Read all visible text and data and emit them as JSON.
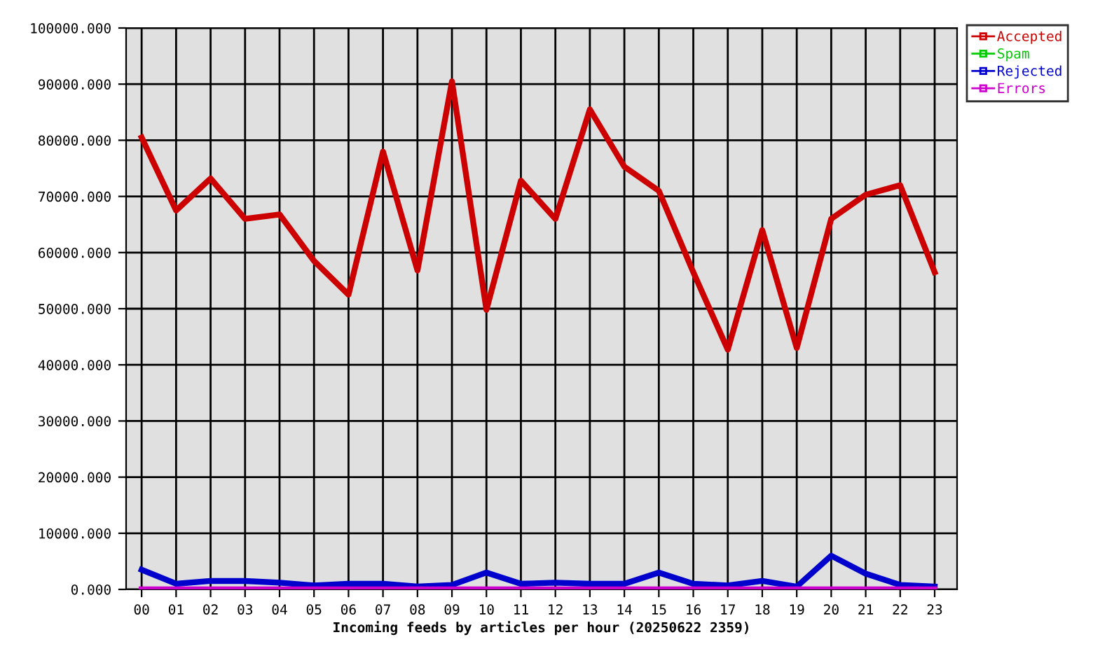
{
  "chart_data": {
    "type": "line",
    "xlabel": "Incoming feeds by articles per hour (20250622 2359)",
    "categories": [
      "00",
      "01",
      "02",
      "03",
      "04",
      "05",
      "06",
      "07",
      "08",
      "09",
      "10",
      "11",
      "12",
      "13",
      "14",
      "15",
      "16",
      "17",
      "18",
      "19",
      "20",
      "21",
      "22",
      "23"
    ],
    "series": [
      {
        "name": "Accepted",
        "color": "#cc0000",
        "values": [
          80500,
          67500,
          73200,
          66000,
          66800,
          58500,
          52500,
          78000,
          56800,
          90500,
          49800,
          72800,
          66000,
          85500,
          75300,
          71000,
          56500,
          42700,
          64000,
          43000,
          66000,
          70300,
          72000,
          56500
        ]
      },
      {
        "name": "Spam",
        "color": "#00cc00",
        "values": [
          null,
          null,
          null,
          null,
          null,
          null,
          null,
          null,
          null,
          null,
          null,
          null,
          null,
          null,
          null,
          null,
          null,
          null,
          null,
          null,
          null,
          null,
          null,
          null
        ]
      },
      {
        "name": "Rejected",
        "color": "#0000cc",
        "values": [
          3500,
          1000,
          1500,
          1500,
          1200,
          700,
          1000,
          1000,
          500,
          800,
          3000,
          1000,
          1200,
          1000,
          1000,
          3000,
          1000,
          700,
          1500,
          500,
          6000,
          2800,
          800,
          500
        ]
      },
      {
        "name": "Errors",
        "color": "#cc00cc",
        "values": [
          0,
          0,
          0,
          0,
          0,
          0,
          0,
          0,
          0,
          0,
          0,
          0,
          0,
          0,
          0,
          0,
          0,
          0,
          0,
          0,
          0,
          0,
          0,
          0
        ]
      }
    ],
    "ylim": [
      0,
      100000
    ],
    "yticks": [
      {
        "value": 0,
        "label": "0.000"
      },
      {
        "value": 10000,
        "label": "10000.000"
      },
      {
        "value": 20000,
        "label": "20000.000"
      },
      {
        "value": 30000,
        "label": "30000.000"
      },
      {
        "value": 40000,
        "label": "40000.000"
      },
      {
        "value": 50000,
        "label": "50000.000"
      },
      {
        "value": 60000,
        "label": "60000.000"
      },
      {
        "value": 70000,
        "label": "70000.000"
      },
      {
        "value": 80000,
        "label": "80000.000"
      },
      {
        "value": 90000,
        "label": "90000.000"
      },
      {
        "value": 100000,
        "label": "100000.000"
      }
    ],
    "grid": true,
    "legend": "top right",
    "marker": "none",
    "line_style": "solid"
  }
}
